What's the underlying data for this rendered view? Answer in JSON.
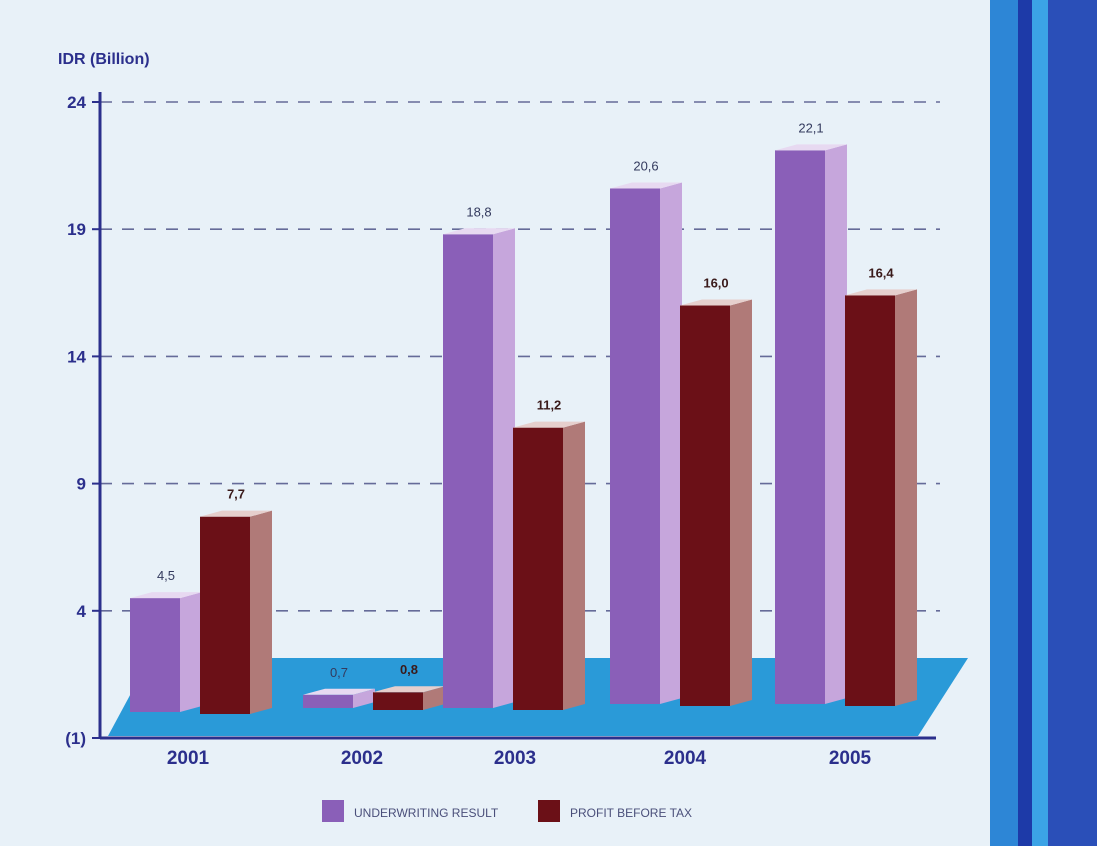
{
  "chart_data": {
    "type": "bar",
    "ylabel": "IDR (Billion)",
    "y_ticks": [
      "(1)",
      "4",
      "9",
      "14",
      "19",
      "24"
    ],
    "y_tick_values": [
      -1,
      4,
      9,
      14,
      19,
      24
    ],
    "ylim": [
      -1,
      24
    ],
    "grid": "dashed horizontal",
    "legend_position": "bottom-center",
    "categories": [
      "2001",
      "2002",
      "2003",
      "2004",
      "2005"
    ],
    "series": [
      {
        "name": "UNDERWRITING RESULT",
        "values": [
          4.5,
          0.7,
          18.8,
          20.6,
          22.1
        ],
        "labels": [
          "4,5",
          "0,7",
          "18,8",
          "20,6",
          "22,1"
        ],
        "color": "#8a5fb8",
        "side_color": "#c6a6dc",
        "top_color": "#e7d9f1"
      },
      {
        "name": "PROFIT BEFORE TAX",
        "values": [
          7.7,
          0.8,
          11.2,
          16.0,
          16.4
        ],
        "labels": [
          "7,7",
          "0,8",
          "11,2",
          "16,0",
          "16,4"
        ],
        "color": "#6b1017",
        "side_color": "#b07a78",
        "top_color": "#e6cfcd"
      }
    ]
  },
  "colors": {
    "axis": "#2b2f8c",
    "floor": "#2a9ad8",
    "tick_text": "#2b2f8c",
    "label_text": "#333a5e",
    "band_colors": [
      "#2d86d6",
      "#1d3aa8",
      "#3ba3e6",
      "#2a4fb8"
    ]
  }
}
